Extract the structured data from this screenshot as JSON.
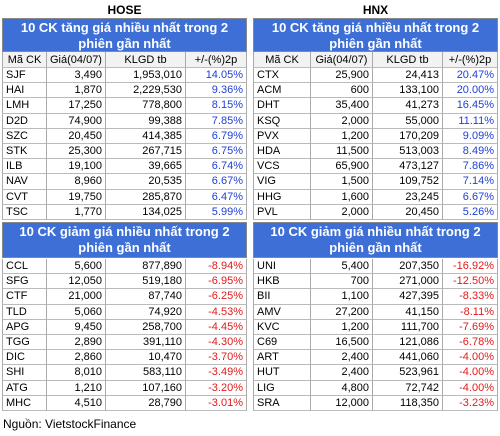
{
  "hose": {
    "title": "HOSE",
    "gainers": {
      "title": "10 CK tăng giá nhiều nhất trong 2 phiên gần nhất",
      "columns": [
        "Mã CK",
        "Giá(04/07)",
        "KLGD tb",
        "+/-(%)2p"
      ],
      "rows": [
        [
          "SJF",
          "3,490",
          "1,953,010",
          "14.05%"
        ],
        [
          "HAI",
          "1,870",
          "2,229,530",
          "9.36%"
        ],
        [
          "LMH",
          "17,250",
          "778,800",
          "8.15%"
        ],
        [
          "D2D",
          "74,900",
          "99,388",
          "7.85%"
        ],
        [
          "SZC",
          "20,450",
          "414,385",
          "6.79%"
        ],
        [
          "STK",
          "25,300",
          "267,715",
          "6.75%"
        ],
        [
          "ILB",
          "19,100",
          "39,665",
          "6.74%"
        ],
        [
          "NAV",
          "8,960",
          "20,535",
          "6.67%"
        ],
        [
          "CVT",
          "19,750",
          "285,870",
          "6.47%"
        ],
        [
          "TSC",
          "1,770",
          "134,025",
          "5.99%"
        ]
      ]
    },
    "losers": {
      "title": "10 CK giảm giá nhiều nhất trong 2 phiên gần nhất",
      "rows": [
        [
          "CCL",
          "5,600",
          "877,890",
          "-8.94%"
        ],
        [
          "SFG",
          "12,050",
          "519,180",
          "-6.95%"
        ],
        [
          "CTF",
          "21,000",
          "87,740",
          "-6.25%"
        ],
        [
          "TLD",
          "5,060",
          "74,920",
          "-4.53%"
        ],
        [
          "APG",
          "9,450",
          "258,700",
          "-4.45%"
        ],
        [
          "TGG",
          "2,890",
          "391,110",
          "-4.30%"
        ],
        [
          "DIC",
          "2,860",
          "10,470",
          "-3.70%"
        ],
        [
          "SHI",
          "8,010",
          "583,110",
          "-3.49%"
        ],
        [
          "ATG",
          "1,210",
          "107,160",
          "-3.20%"
        ],
        [
          "MHC",
          "4,510",
          "28,790",
          "-3.01%"
        ]
      ]
    }
  },
  "hnx": {
    "title": "HNX",
    "gainers": {
      "title": "10 CK tăng giá nhiều nhất trong 2 phiên gần nhất",
      "columns": [
        "Mã CK",
        "Giá(04/07)",
        "KLGD tb",
        "+/-(%)2p"
      ],
      "rows": [
        [
          "CTX",
          "25,900",
          "24,413",
          "20.47%"
        ],
        [
          "ACM",
          "600",
          "133,100",
          "20.00%"
        ],
        [
          "DHT",
          "35,400",
          "41,273",
          "16.45%"
        ],
        [
          "KSQ",
          "2,000",
          "55,000",
          "11.11%"
        ],
        [
          "PVX",
          "1,200",
          "170,209",
          "9.09%"
        ],
        [
          "HDA",
          "11,500",
          "513,003",
          "8.49%"
        ],
        [
          "VCS",
          "65,900",
          "473,127",
          "7.86%"
        ],
        [
          "VIG",
          "1,500",
          "109,752",
          "7.14%"
        ],
        [
          "HHG",
          "1,600",
          "23,245",
          "6.67%"
        ],
        [
          "PVL",
          "2,000",
          "20,450",
          "5.26%"
        ]
      ]
    },
    "losers": {
      "title": "10 CK giảm giá nhiều nhất trong 2 phiên gần nhất",
      "rows": [
        [
          "UNI",
          "5,400",
          "207,350",
          "-16.92%"
        ],
        [
          "HKB",
          "700",
          "271,000",
          "-12.50%"
        ],
        [
          "BII",
          "1,100",
          "427,395",
          "-8.33%"
        ],
        [
          "AMV",
          "27,200",
          "41,150",
          "-8.11%"
        ],
        [
          "KVC",
          "1,200",
          "111,700",
          "-7.69%"
        ],
        [
          "C69",
          "16,500",
          "121,086",
          "-6.78%"
        ],
        [
          "ART",
          "2,400",
          "441,060",
          "-4.00%"
        ],
        [
          "HUT",
          "2,400",
          "523,961",
          "-4.00%"
        ],
        [
          "LIG",
          "4,800",
          "72,742",
          "-4.00%"
        ],
        [
          "SRA",
          "12,000",
          "118,350",
          "-3.23%"
        ]
      ]
    }
  },
  "source": "Nguồn: VietstockFinance"
}
